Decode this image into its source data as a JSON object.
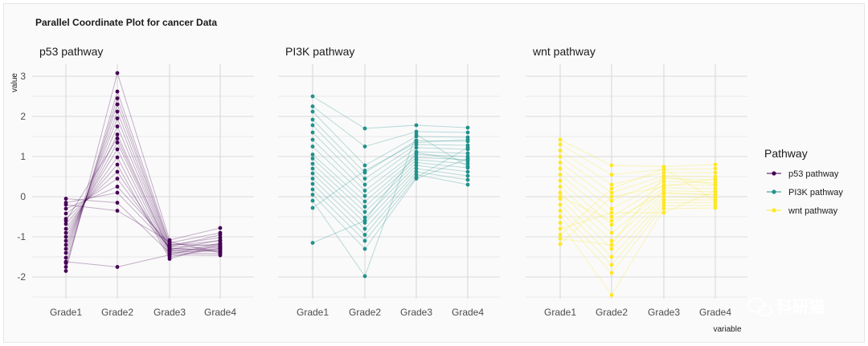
{
  "colors": {
    "p53": "#440154",
    "pi3k": "#21918c",
    "wnt": "#fde725",
    "grid": "#d9d9d9"
  },
  "watermark": {
    "text": "科研猫",
    "icon": "wechat-icon"
  },
  "chart_data": {
    "type": "line",
    "title": "Parallel Coordinate Plot for cancer Data",
    "xlabel": "variable",
    "ylabel": "value",
    "ylim": [
      -2.5,
      3.3
    ],
    "yticks": [
      -2,
      -1,
      0,
      1,
      2,
      3
    ],
    "categories": [
      "Grade1",
      "Grade2",
      "Grade3",
      "Grade4"
    ],
    "legend": {
      "title": "Pathway",
      "position": "right"
    },
    "grid": true,
    "facets": [
      {
        "name": "p53 pathway",
        "color_key": "p53",
        "series": [
          [
            -1.85,
            3.08,
            -1.08,
            -0.78
          ],
          [
            -1.75,
            2.62,
            -1.15,
            -0.9
          ],
          [
            -1.65,
            2.45,
            -1.2,
            -1.02
          ],
          [
            -1.52,
            2.3,
            -1.22,
            -1.1
          ],
          [
            -1.4,
            2.12,
            -1.26,
            -1.18
          ],
          [
            -1.3,
            1.95,
            -1.3,
            -1.24
          ],
          [
            -1.2,
            1.75,
            -1.33,
            -1.3
          ],
          [
            -1.1,
            1.55,
            -1.36,
            -1.36
          ],
          [
            -1.0,
            1.35,
            -1.4,
            -1.42
          ],
          [
            -0.9,
            1.18,
            -1.45,
            -1.46
          ],
          [
            -0.8,
            0.98,
            -1.5,
            -1.28
          ],
          [
            -0.68,
            0.8,
            -1.55,
            -1.18
          ],
          [
            -0.55,
            0.62,
            -1.32,
            -1.08
          ],
          [
            -0.42,
            0.45,
            -1.28,
            -1.36
          ],
          [
            -0.3,
            0.25,
            -1.18,
            -1.22
          ],
          [
            -0.15,
            0.1,
            -1.25,
            -0.95
          ],
          [
            -0.05,
            -0.15,
            -1.4,
            -1.32
          ],
          [
            -0.2,
            -0.35,
            -1.12,
            -1.4
          ],
          [
            -0.6,
            1.45,
            -1.35,
            -1.26
          ],
          [
            -1.62,
            -1.75,
            -1.45,
            -1.15
          ]
        ]
      },
      {
        "name": "PI3K pathway",
        "color_key": "pi3k",
        "series": [
          [
            2.5,
            1.7,
            1.78,
            1.72
          ],
          [
            2.25,
            1.25,
            1.62,
            1.6
          ],
          [
            2.12,
            0.78,
            1.5,
            1.48
          ],
          [
            1.92,
            0.6,
            1.4,
            1.38
          ],
          [
            1.78,
            0.45,
            1.3,
            1.28
          ],
          [
            1.6,
            0.3,
            1.22,
            1.18
          ],
          [
            1.42,
            0.15,
            1.12,
            1.08
          ],
          [
            1.25,
            0.02,
            1.05,
            1.0
          ],
          [
            1.05,
            -0.12,
            0.98,
            0.92
          ],
          [
            0.95,
            -0.25,
            0.92,
            0.82
          ],
          [
            0.82,
            -0.38,
            0.85,
            0.72
          ],
          [
            0.7,
            -0.52,
            0.78,
            0.62
          ],
          [
            0.58,
            -0.65,
            0.7,
            0.52
          ],
          [
            0.45,
            -0.8,
            0.62,
            0.42
          ],
          [
            0.32,
            -0.95,
            0.55,
            0.3
          ],
          [
            0.18,
            -1.1,
            0.48,
            1.22
          ],
          [
            0.05,
            -1.3,
            0.45,
            0.95
          ],
          [
            -0.1,
            -1.98,
            1.55,
            0.75
          ],
          [
            -0.28,
            0.65,
            1.35,
            1.42
          ],
          [
            -1.15,
            -0.6,
            1.1,
            0.88
          ]
        ]
      },
      {
        "name": "wnt pathway",
        "color_key": "wnt",
        "series": [
          [
            1.42,
            0.78,
            0.75,
            0.8
          ],
          [
            1.3,
            0.55,
            0.68,
            0.7
          ],
          [
            1.15,
            0.3,
            0.6,
            0.6
          ],
          [
            1.0,
            0.1,
            0.52,
            0.5
          ],
          [
            0.85,
            -0.1,
            0.45,
            0.42
          ],
          [
            0.7,
            -0.3,
            0.38,
            0.35
          ],
          [
            0.55,
            -0.5,
            0.3,
            0.28
          ],
          [
            0.4,
            -0.7,
            0.22,
            0.2
          ],
          [
            0.25,
            -0.9,
            0.15,
            0.12
          ],
          [
            0.1,
            -1.1,
            0.08,
            0.05
          ],
          [
            -0.05,
            -1.3,
            0.0,
            -0.02
          ],
          [
            -0.2,
            -1.5,
            -0.08,
            -0.08
          ],
          [
            -0.35,
            -1.7,
            -0.15,
            -0.15
          ],
          [
            -0.5,
            -1.9,
            -0.22,
            -0.22
          ],
          [
            -0.65,
            -2.45,
            -0.3,
            -0.28
          ],
          [
            -0.8,
            -0.4,
            -0.4,
            0.15
          ],
          [
            -0.95,
            0.2,
            0.7,
            -0.1
          ],
          [
            -1.05,
            -1.2,
            0.5,
            0.3
          ],
          [
            -1.18,
            0.0,
            0.25,
            0.45
          ],
          [
            0.0,
            -0.6,
            0.1,
            0.05
          ]
        ]
      }
    ]
  }
}
